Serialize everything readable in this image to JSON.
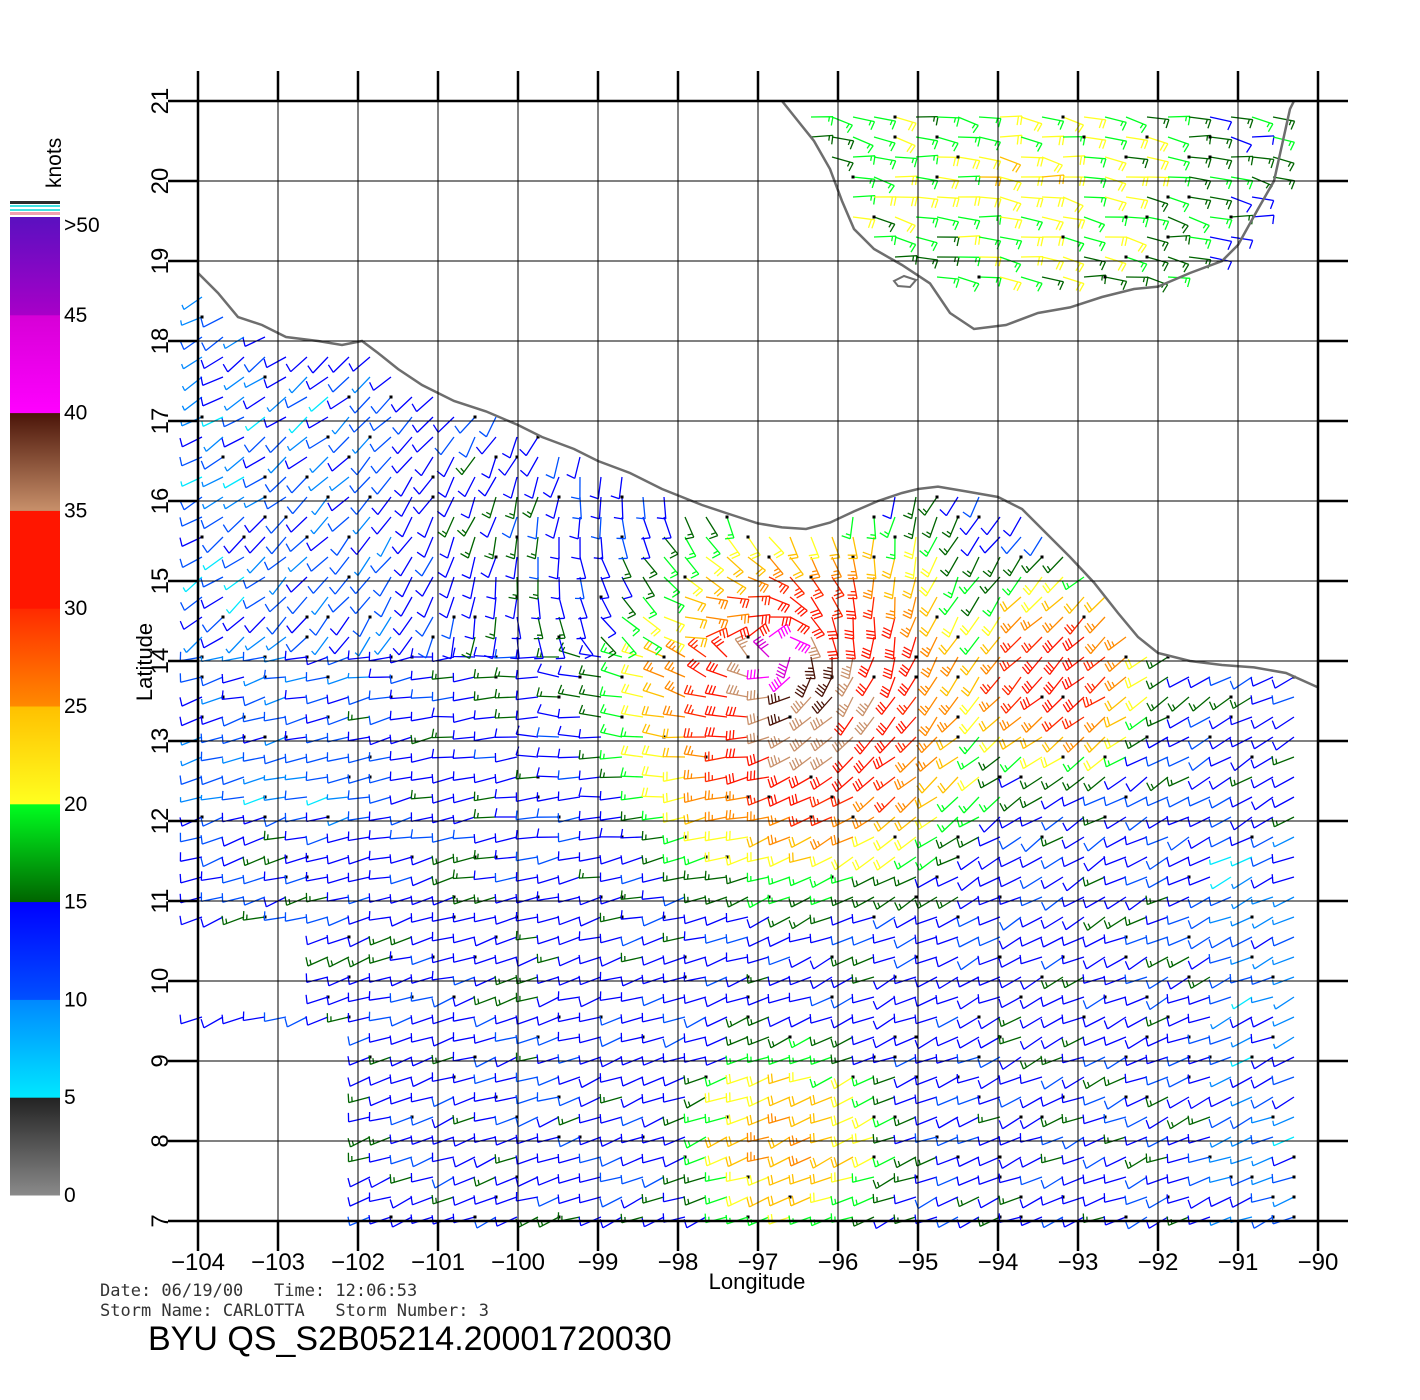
{
  "map": {
    "lon_range": [
      -104,
      -90
    ],
    "lat_range": [
      7,
      21
    ],
    "lon_ticks": [
      "-104",
      "-103",
      "-102",
      "-101",
      "-100",
      "-99",
      "-98",
      "-97",
      "-96",
      "-95",
      "-94",
      "-93",
      "-92",
      "-91",
      "-90"
    ],
    "lat_ticks": [
      "7",
      "8",
      "9",
      "10",
      "11",
      "12",
      "13",
      "14",
      "15",
      "16",
      "17",
      "18",
      "19",
      "20",
      "21"
    ],
    "xlabel": "Longitude",
    "ylabel": "Latitude",
    "grid": true,
    "coast_color": "#6e6e6e",
    "grid_color": "#000000",
    "land": [
      "Mexico Pacific coast",
      "Yucatan Peninsula"
    ],
    "field": "QuikSCAT wind barbs"
  },
  "colorbar": {
    "unit_label": "knots",
    "labels": [
      ">50",
      "45",
      "40",
      "35",
      "30",
      "25",
      "20",
      "15",
      "10",
      "5",
      "0"
    ],
    "bands": [
      {
        "range": [
          0,
          5
        ],
        "top": "#222222",
        "bottom": "#8a8a8a"
      },
      {
        "range": [
          5,
          10
        ],
        "top": "#0088ff",
        "bottom": "#00e8ff"
      },
      {
        "range": [
          10,
          15
        ],
        "top": "#0000ff",
        "bottom": "#0050ff"
      },
      {
        "range": [
          15,
          20
        ],
        "top": "#00ff20",
        "bottom": "#006400"
      },
      {
        "range": [
          20,
          25
        ],
        "top": "#ffc000",
        "bottom": "#ffff20"
      },
      {
        "range": [
          25,
          30
        ],
        "top": "#ff2a00",
        "bottom": "#ff8a00"
      },
      {
        "range": [
          30,
          35
        ],
        "top": "#ff1600",
        "bottom": "#ff1600"
      },
      {
        "range": [
          35,
          40
        ],
        "top": "#4a1408",
        "bottom": "#c8906a"
      },
      {
        "range": [
          40,
          45
        ],
        "top": "#d600d6",
        "bottom": "#ff00ff"
      },
      {
        "range": [
          45,
          50
        ],
        "top": "#5a10c0",
        "bottom": "#a800c8"
      }
    ]
  },
  "footer": {
    "date_line": "Date: 06/19/00   Time: 12:06:53",
    "storm_line": "Storm Name: CARLOTTA   Storm Number: 3",
    "product": "BYU QS_S2B05214.20001720030"
  },
  "wind_regions": [
    {
      "name": "storm-core",
      "center": [
        -96.7,
        14.1
      ],
      "peak_knots": 45,
      "radius_deg": 1.1
    },
    {
      "name": "outer-band",
      "center": [
        -96.3,
        13.6
      ],
      "peak_knots": 32,
      "radius_deg": 3.2
    },
    {
      "name": "gap-jet-east",
      "center": [
        -93.2,
        13.9
      ],
      "peak_knots": 30,
      "radius_deg": 2.0
    },
    {
      "name": "southern-band",
      "center": [
        -96.5,
        8.0
      ],
      "peak_knots": 24,
      "radius_deg": 2.2
    },
    {
      "name": "yucatan-wedge",
      "center": [
        -93.8,
        20.3
      ],
      "peak_knots": 21,
      "radius_deg": 2.0
    }
  ]
}
